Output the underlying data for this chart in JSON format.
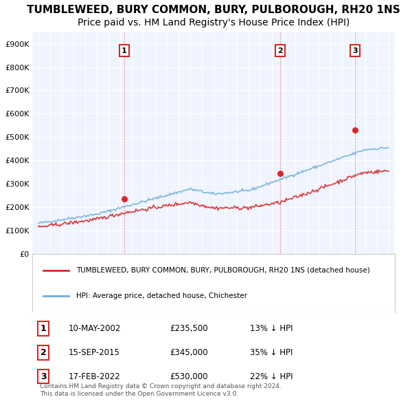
{
  "title": "TUMBLEWEED, BURY COMMON, BURY, PULBOROUGH, RH20 1NS",
  "subtitle": "Price paid vs. HM Land Registry's House Price Index (HPI)",
  "title_fontsize": 11,
  "subtitle_fontsize": 10,
  "ylim": [
    0,
    950000
  ],
  "yticks": [
    0,
    100000,
    200000,
    300000,
    400000,
    500000,
    600000,
    700000,
    800000,
    900000
  ],
  "ytick_labels": [
    "£0",
    "£100K",
    "£200K",
    "£300K",
    "£400K",
    "£500K",
    "£600K",
    "£700K",
    "£800K",
    "£900K"
  ],
  "hpi_color": "#6baed6",
  "price_color": "#d62728",
  "background_color": "#f0f4ff",
  "grid_color": "#ffffff",
  "transactions": [
    {
      "label": "1",
      "date_str": "10-MAY-2002",
      "price": 235500,
      "pct": "13%",
      "x_year": 2002.36
    },
    {
      "label": "2",
      "date_str": "15-SEP-2015",
      "price": 345000,
      "pct": "35%",
      "x_year": 2015.71
    },
    {
      "label": "3",
      "date_str": "17-FEB-2022",
      "price": 530000,
      "pct": "22%",
      "x_year": 2022.13
    }
  ],
  "legend_property_label": "TUMBLEWEED, BURY COMMON, BURY, PULBOROUGH, RH20 1NS (detached house)",
  "legend_hpi_label": "HPI: Average price, detached house, Chichester",
  "copyright_text": "Contains HM Land Registry data © Crown copyright and database right 2024.\nThis data is licensed under the Open Government Licence v3.0.",
  "xlim": [
    1994.5,
    2025.5
  ],
  "xticks": [
    1995,
    1996,
    1997,
    1998,
    1999,
    2000,
    2001,
    2002,
    2003,
    2004,
    2005,
    2006,
    2007,
    2008,
    2009,
    2010,
    2011,
    2012,
    2013,
    2014,
    2015,
    2016,
    2017,
    2018,
    2019,
    2020,
    2021,
    2022,
    2023,
    2024,
    2025
  ]
}
